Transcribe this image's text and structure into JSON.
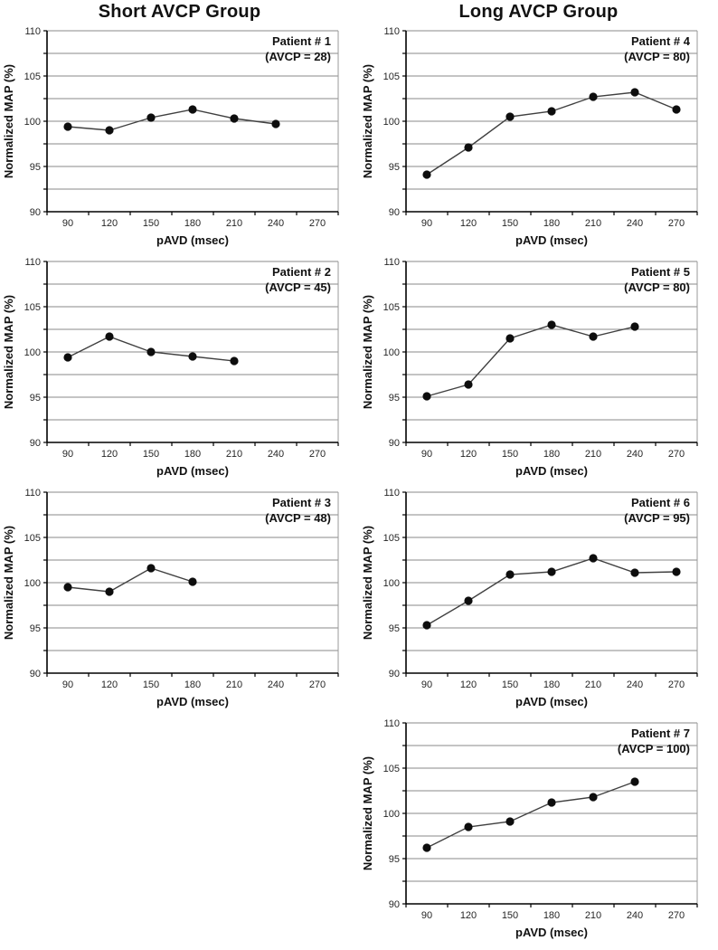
{
  "figure": {
    "background": "#ffffff"
  },
  "columns": [
    {
      "title": "Short AVCP Group"
    },
    {
      "title": "Long AVCP Group"
    }
  ],
  "colors": {
    "gridline": "#8a8a8a",
    "plot_frame": "#9a9a9a",
    "axis": "#000000",
    "series_line": "#404040",
    "marker_fill": "#0d0d0d",
    "title_text": "#111111",
    "tick_text": "#262626"
  },
  "chart_defaults": {
    "type": "line",
    "xlabel": "pAVD (msec)",
    "ylabel": "Normalized MAP (%)",
    "x_categories": [
      90,
      120,
      150,
      180,
      210,
      240,
      270
    ],
    "ylim": [
      90,
      110
    ],
    "y_label_step": 5,
    "y_grid_step": 2.5,
    "grid": "horizontal",
    "legend": "none",
    "marker": "filled-circle"
  },
  "chart_data": [
    {
      "id": "patient-1",
      "column": 0,
      "group": "Short AVCP Group",
      "patient_label": "Patient # 1",
      "avcp_label": "(AVCP = 28)",
      "x": [
        90,
        120,
        150,
        180,
        210,
        240
      ],
      "y": [
        99.4,
        99.0,
        100.4,
        101.3,
        100.3,
        99.7
      ]
    },
    {
      "id": "patient-2",
      "column": 0,
      "group": "Short AVCP Group",
      "patient_label": "Patient # 2",
      "avcp_label": "(AVCP = 45)",
      "x": [
        90,
        120,
        150,
        180,
        210
      ],
      "y": [
        99.4,
        101.7,
        100.0,
        99.5,
        99.0
      ]
    },
    {
      "id": "patient-3",
      "column": 0,
      "group": "Short AVCP Group",
      "patient_label": "Patient # 3",
      "avcp_label": "(AVCP = 48)",
      "x": [
        90,
        120,
        150,
        180
      ],
      "y": [
        99.5,
        99.0,
        101.6,
        100.1
      ]
    },
    {
      "id": "patient-4",
      "column": 1,
      "group": "Long AVCP Group",
      "patient_label": "Patient # 4",
      "avcp_label": "(AVCP = 80)",
      "x": [
        90,
        120,
        150,
        180,
        210,
        240,
        270
      ],
      "y": [
        94.1,
        97.1,
        100.5,
        101.1,
        102.7,
        103.2,
        101.3
      ]
    },
    {
      "id": "patient-5",
      "column": 1,
      "group": "Long AVCP Group",
      "patient_label": "Patient # 5",
      "avcp_label": "(AVCP = 80)",
      "x": [
        90,
        120,
        150,
        180,
        210,
        240
      ],
      "y": [
        95.1,
        96.4,
        101.5,
        103.0,
        101.7,
        102.8
      ]
    },
    {
      "id": "patient-6",
      "column": 1,
      "group": "Long AVCP Group",
      "patient_label": "Patient # 6",
      "avcp_label": "(AVCP = 95)",
      "x": [
        90,
        120,
        150,
        180,
        210,
        240,
        270
      ],
      "y": [
        95.3,
        98.0,
        100.9,
        101.2,
        102.7,
        101.1,
        101.2
      ]
    },
    {
      "id": "patient-7",
      "column": 1,
      "group": "Long AVCP Group",
      "patient_label": "Patient # 7",
      "avcp_label": "(AVCP = 100)",
      "x": [
        90,
        120,
        150,
        180,
        210,
        240
      ],
      "y": [
        96.2,
        98.5,
        99.1,
        101.2,
        101.8,
        103.5
      ]
    }
  ]
}
